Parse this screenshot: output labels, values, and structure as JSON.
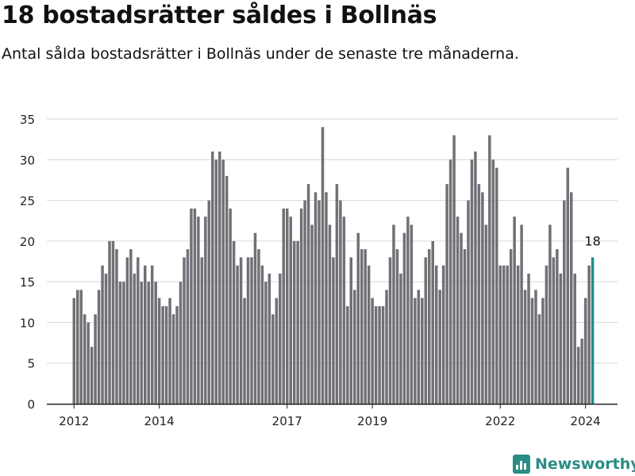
{
  "header": {
    "title": "18 bostadsrätter såldes i Bollnäs",
    "subtitle": "Antal sålda bostadsrätter i Bollnäs under de senaste tre månaderna."
  },
  "brand": {
    "name": "Newsworthy",
    "color": "#2a8c85",
    "icon": "newsworthy-logo-icon"
  },
  "colors": {
    "bar": "#707076",
    "highlight": "#1a9089",
    "grid": "#d6d6d6",
    "axis": "#222222"
  },
  "chart_data": {
    "type": "bar",
    "title": "18 bostadsrätter såldes i Bollnäs",
    "ylim": [
      0,
      35
    ],
    "yticks": [
      0,
      5,
      10,
      15,
      20,
      25,
      30,
      35
    ],
    "xticks": [
      {
        "label": "2012",
        "index": 0
      },
      {
        "label": "2014",
        "index": 24
      },
      {
        "label": "2017",
        "index": 60
      },
      {
        "label": "2019",
        "index": 84
      },
      {
        "label": "2022",
        "index": 120
      },
      {
        "label": "2024",
        "index": 144
      }
    ],
    "start": "2012-01",
    "values": [
      13,
      14,
      14,
      11,
      10,
      7,
      11,
      14,
      17,
      16,
      20,
      20,
      19,
      15,
      15,
      18,
      19,
      16,
      18,
      15,
      17,
      15,
      17,
      15,
      13,
      12,
      12,
      13,
      11,
      12,
      15,
      18,
      19,
      24,
      24,
      23,
      18,
      23,
      25,
      31,
      30,
      31,
      30,
      28,
      24,
      20,
      17,
      18,
      13,
      18,
      18,
      21,
      19,
      17,
      15,
      16,
      11,
      13,
      16,
      24,
      24,
      23,
      20,
      20,
      24,
      25,
      27,
      22,
      26,
      25,
      34,
      26,
      22,
      18,
      27,
      25,
      23,
      12,
      18,
      14,
      21,
      19,
      19,
      17,
      13,
      12,
      12,
      12,
      14,
      18,
      22,
      19,
      16,
      21,
      23,
      22,
      13,
      14,
      13,
      18,
      19,
      20,
      17,
      14,
      17,
      27,
      30,
      33,
      23,
      21,
      19,
      25,
      30,
      31,
      27,
      26,
      22,
      33,
      30,
      29,
      17,
      17,
      17,
      19,
      23,
      17,
      22,
      14,
      16,
      13,
      14,
      11,
      13,
      17,
      22,
      18,
      19,
      16,
      25,
      29,
      26,
      16,
      7,
      8,
      13,
      17,
      18
    ],
    "highlight_index": 146,
    "highlight_label": "18"
  }
}
